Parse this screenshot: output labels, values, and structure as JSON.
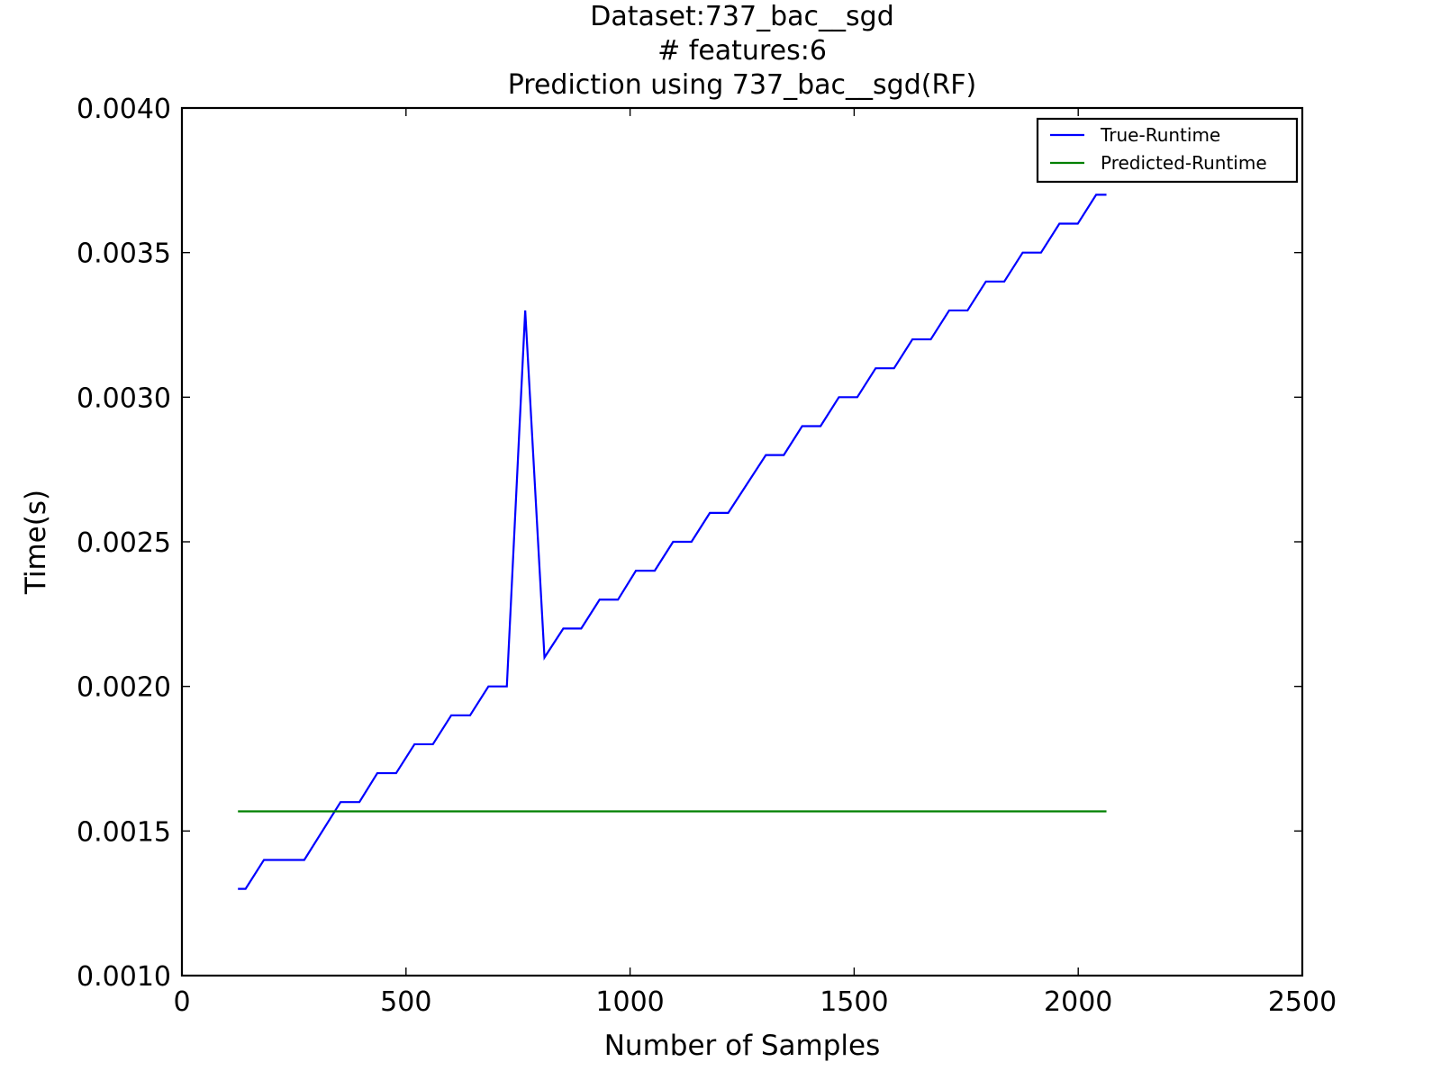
{
  "chart_data": {
    "type": "line",
    "title_lines": [
      "Dataset:737_bac__sgd",
      "# features:6",
      "Prediction using 737_bac__sgd(RF)"
    ],
    "xlabel": "Number of Samples",
    "ylabel": "Time(s)",
    "xlim": [
      0,
      2500
    ],
    "ylim": [
      0.001,
      0.004
    ],
    "xticks": [
      0,
      500,
      1000,
      1500,
      2000,
      2500
    ],
    "xtick_labels": [
      "0",
      "500",
      "1000",
      "1500",
      "2000",
      "2500"
    ],
    "yticks": [
      0.001,
      0.0015,
      0.002,
      0.0025,
      0.003,
      0.0035,
      0.004
    ],
    "ytick_labels": [
      "0.0010",
      "0.0015",
      "0.0020",
      "0.0025",
      "0.0030",
      "0.0035",
      "0.0040"
    ],
    "grid": false,
    "legend_position": "top-right",
    "series": [
      {
        "name": "True-Runtime",
        "color": "#0000ff",
        "x": [
          125,
          142,
          183,
          273,
          354,
          396,
          436,
          478,
          519,
          560,
          601,
          643,
          684,
          725,
          766,
          809,
          851,
          891,
          932,
          973,
          1013,
          1055,
          1096,
          1137,
          1178,
          1219,
          1303,
          1343,
          1384,
          1425,
          1466,
          1507,
          1548,
          1589,
          1630,
          1671,
          1712,
          1753,
          1794,
          1835,
          1876,
          1917,
          1958,
          1999,
          2040,
          2063
        ],
        "y": [
          0.0013,
          0.0013,
          0.0014,
          0.0014,
          0.0016,
          0.0016,
          0.0017,
          0.0017,
          0.0018,
          0.0018,
          0.0019,
          0.0019,
          0.002,
          0.002,
          0.0033,
          0.0021,
          0.0022,
          0.0022,
          0.0023,
          0.0023,
          0.0024,
          0.0024,
          0.0025,
          0.0025,
          0.0026,
          0.0026,
          0.0028,
          0.0028,
          0.0029,
          0.0029,
          0.003,
          0.003,
          0.0031,
          0.0031,
          0.0032,
          0.0032,
          0.0033,
          0.0033,
          0.0034,
          0.0034,
          0.0035,
          0.0035,
          0.0036,
          0.0036,
          0.0037,
          0.0037
        ]
      },
      {
        "name": "Predicted-Runtime",
        "color": "#008000",
        "x": [
          125,
          2063
        ],
        "y": [
          0.001568,
          0.001568
        ]
      }
    ]
  }
}
